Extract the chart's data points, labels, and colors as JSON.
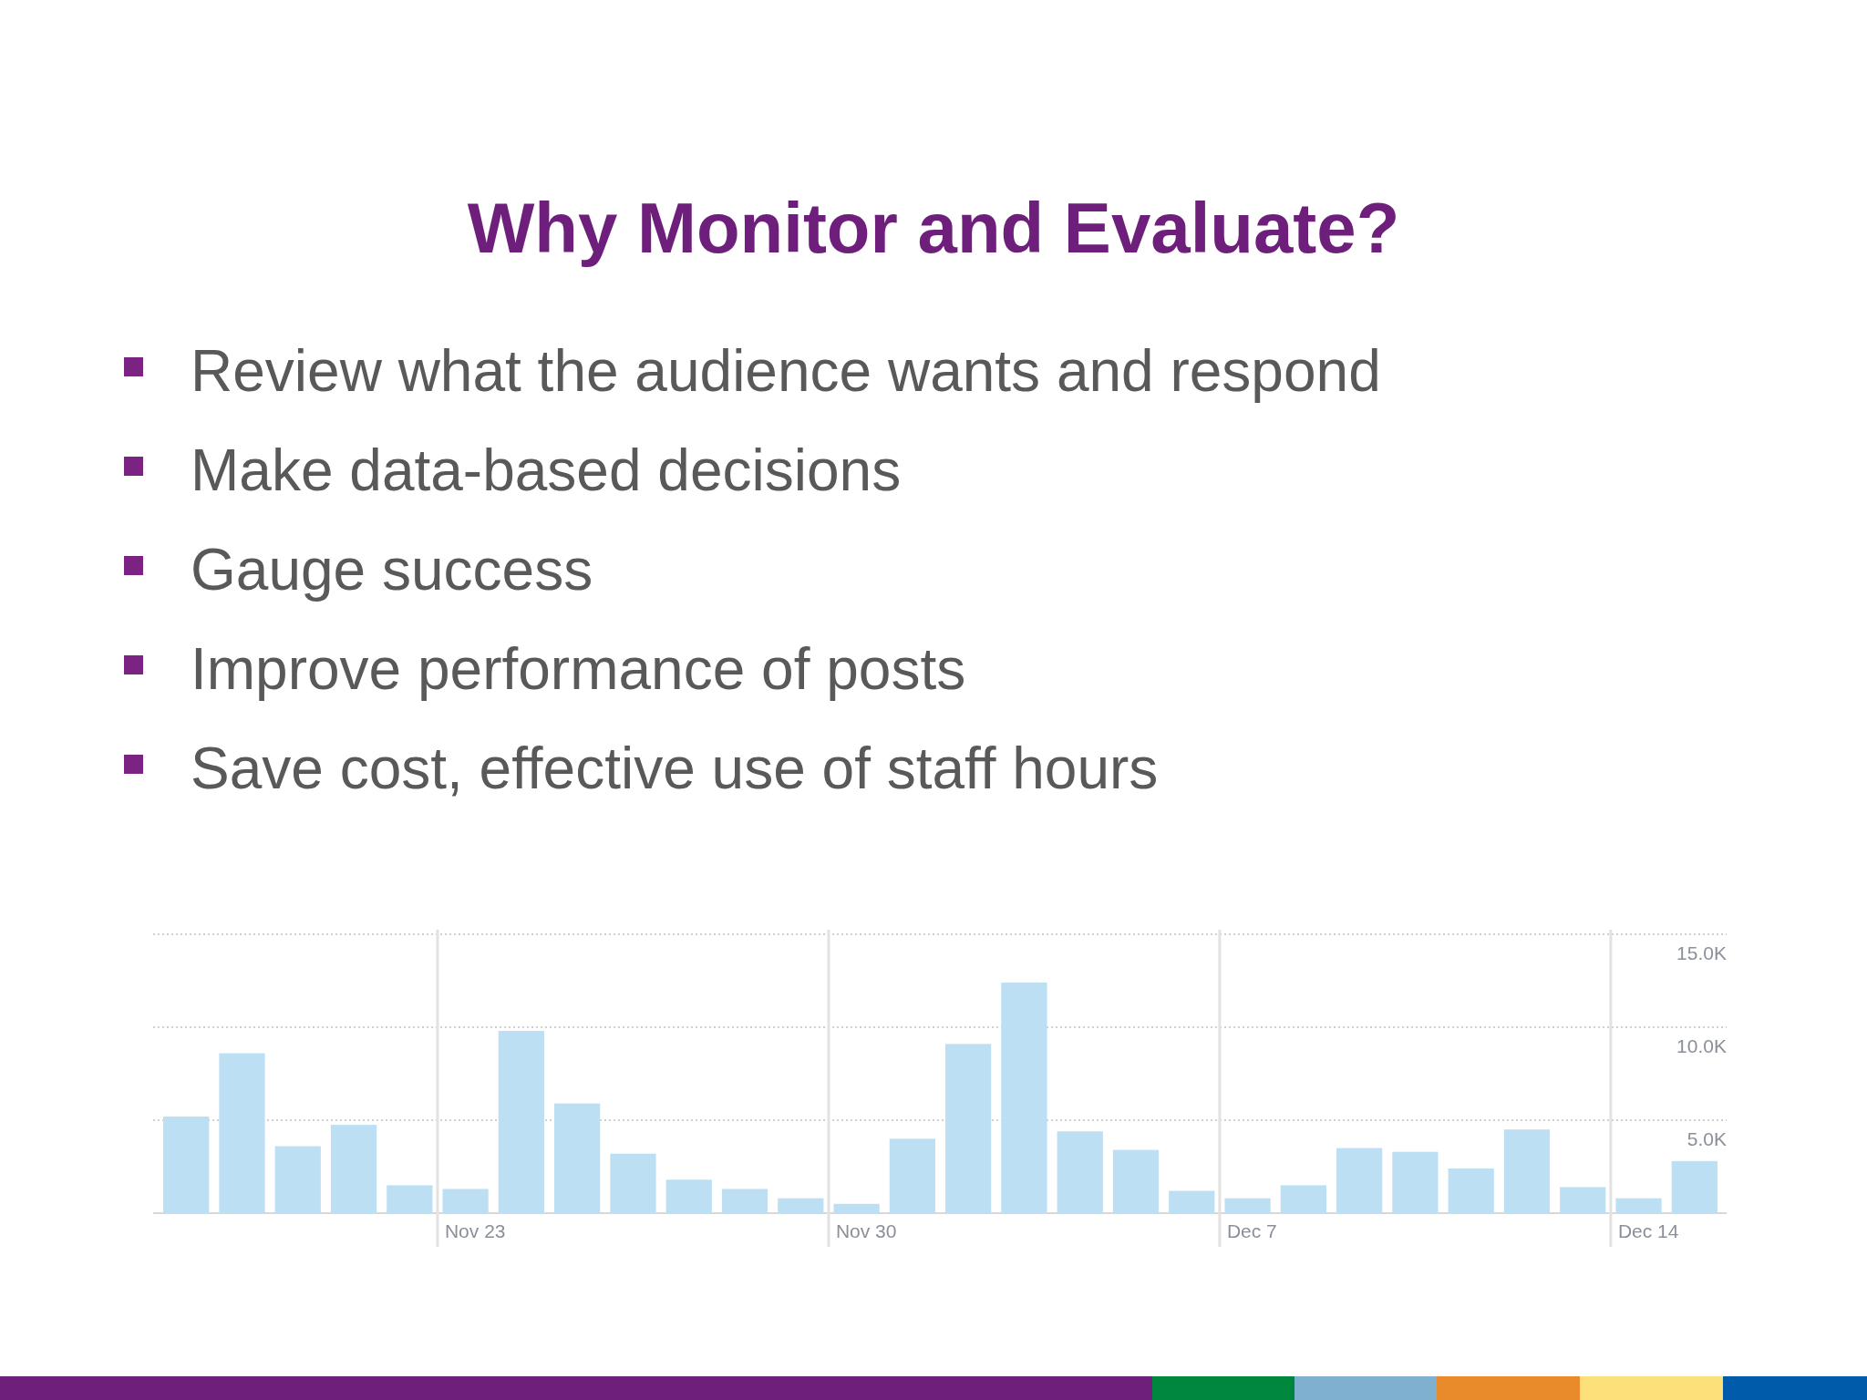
{
  "chart_data": {
    "type": "bar",
    "title": "Why Monitor and Evaluate?",
    "annotations": [
      "Review what the audience wants and respond",
      "Make data-based decisions",
      "Gauge success",
      "Improve performance of posts",
      "Save cost, effective use of staff hours"
    ],
    "categories": [
      null,
      null,
      null,
      null,
      null,
      "Nov 23",
      null,
      null,
      null,
      null,
      null,
      null,
      "Nov 30",
      null,
      null,
      null,
      null,
      null,
      null,
      "Dec 7",
      null,
      null,
      null,
      null,
      null,
      null,
      "Dec 14",
      null
    ],
    "values": [
      5200,
      8600,
      3600,
      4750,
      1500,
      1300,
      9800,
      5900,
      3200,
      1800,
      1300,
      800,
      500,
      4000,
      9100,
      12400,
      4400,
      3400,
      1200,
      800,
      1500,
      3500,
      3300,
      2400,
      4500,
      1400,
      800,
      2800
    ],
    "color": "#bddff3",
    "ylim": [
      0,
      15000
    ],
    "yticks": [
      {
        "value": 0,
        "label": null
      },
      {
        "value": 5000,
        "label": "5.0K"
      },
      {
        "value": 10000,
        "label": "10.0K"
      },
      {
        "value": 15000,
        "label": "15.0K"
      }
    ],
    "grid": true
  }
}
